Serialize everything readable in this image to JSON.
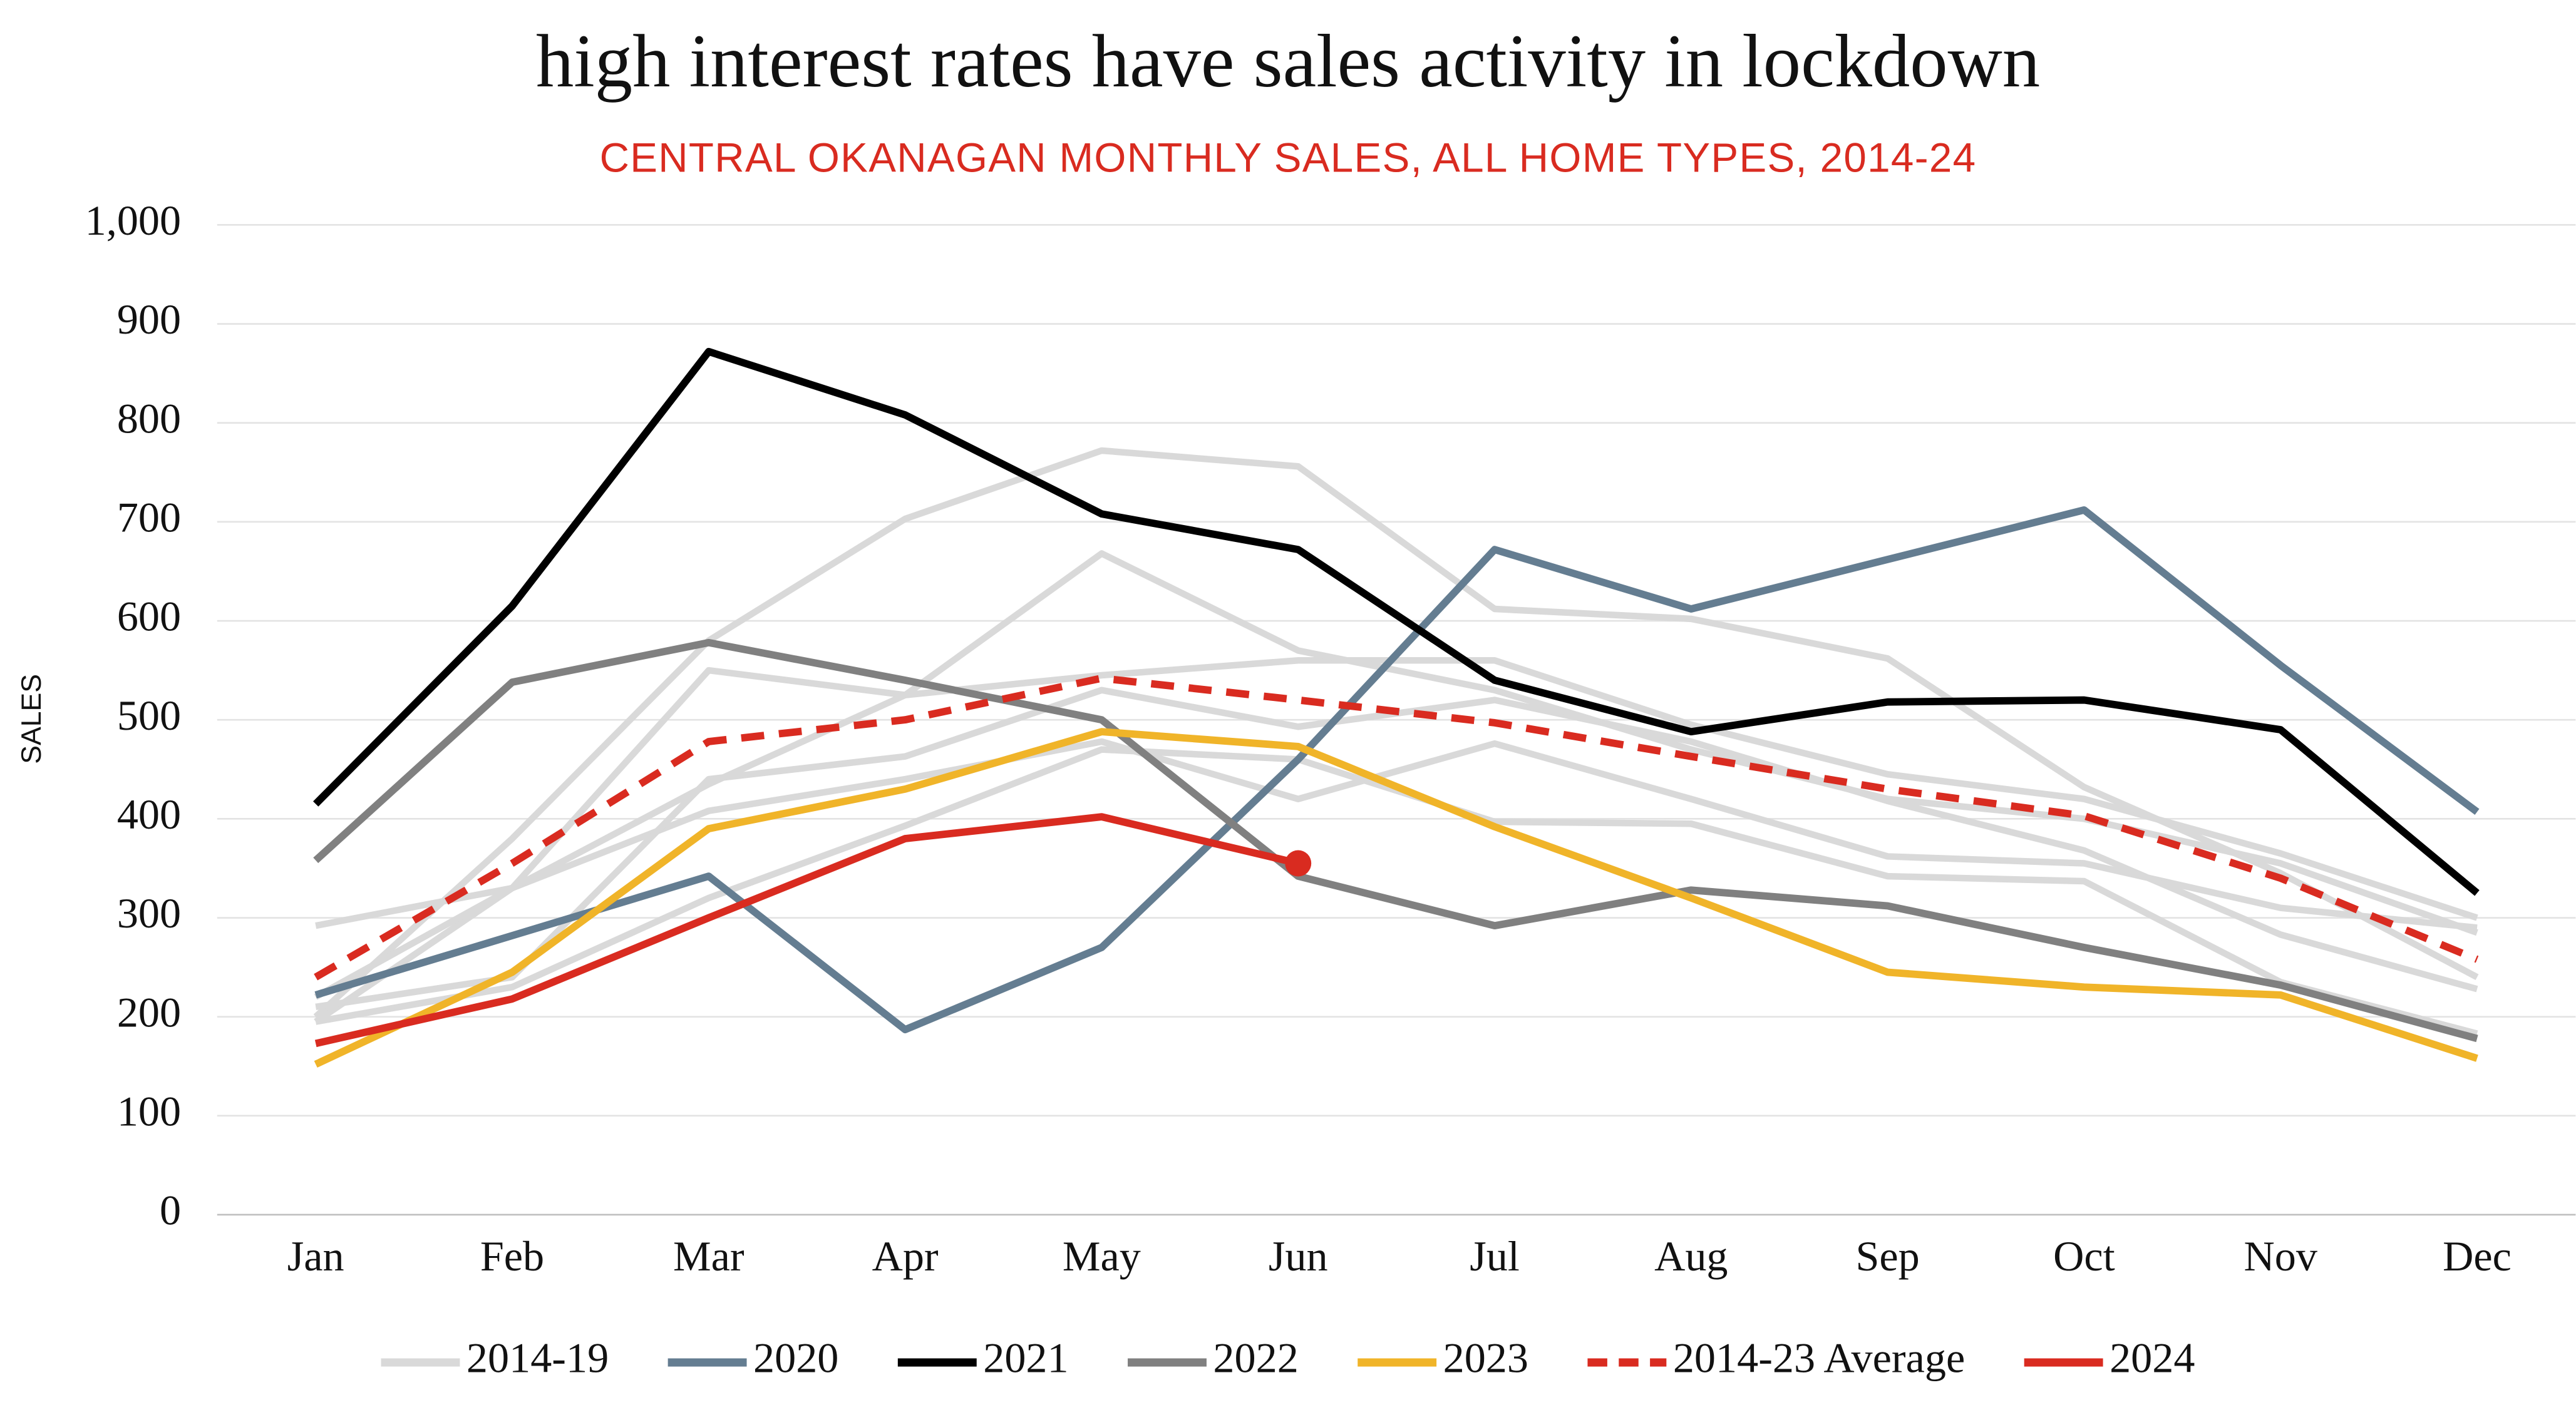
{
  "chart_data": {
    "type": "line",
    "title": "high interest rates have sales activity in lockdown",
    "subtitle": "CENTRAL OKANAGAN MONTHLY SALES, ALL HOME TYPES, 2014-24",
    "y_label": "SALES",
    "categories": [
      "Jan",
      "Feb",
      "Mar",
      "Apr",
      "May",
      "Jun",
      "Jul",
      "Aug",
      "Sep",
      "Oct",
      "Nov",
      "Dec"
    ],
    "ylim": [
      0,
      1000
    ],
    "yticks": [
      0,
      100,
      200,
      300,
      400,
      500,
      600,
      700,
      800,
      900,
      {
        "value": 1000,
        "label": "1,000"
      }
    ],
    "grid": true,
    "legend": "bottom",
    "series": [
      {
        "name": "2014-19",
        "color": "#d9d9d9",
        "lines": [
          [
            292,
            330,
            408,
            440,
            478,
            420,
            476,
            420,
            362,
            355,
            310,
            290
          ],
          [
            195,
            330,
            550,
            525,
            545,
            560,
            560,
            495,
            445,
            420,
            365,
            300
          ],
          [
            200,
            380,
            580,
            703,
            772,
            756,
            612,
            602,
            562,
            432,
            345,
            240
          ],
          [
            210,
            240,
            440,
            463,
            530,
            493,
            520,
            478,
            418,
            368,
            283,
            228
          ],
          [
            195,
            230,
            320,
            393,
            470,
            460,
            397,
            395,
            342,
            337,
            235,
            183
          ],
          [
            220,
            330,
            435,
            525,
            668,
            570,
            530,
            470,
            420,
            400,
            355,
            285
          ]
        ]
      },
      {
        "name": "2020",
        "color": "#647d91",
        "values": [
          222,
          282,
          342,
          187,
          270,
          460,
          672,
          612,
          662,
          712,
          555,
          407
        ]
      },
      {
        "name": "2021",
        "color": "#000000",
        "values": [
          415,
          615,
          872,
          808,
          708,
          672,
          540,
          488,
          518,
          520,
          490,
          325
        ]
      },
      {
        "name": "2022",
        "color": "#808080",
        "values": [
          358,
          538,
          578,
          540,
          500,
          342,
          292,
          328,
          312,
          270,
          232,
          178
        ]
      },
      {
        "name": "2023",
        "color": "#f0b429",
        "values": [
          152,
          245,
          390,
          430,
          488,
          473,
          392,
          320,
          245,
          230,
          222,
          158
        ]
      },
      {
        "name": "2014-23 Average",
        "color": "#d92b20",
        "dashed": true,
        "values": [
          240,
          355,
          478,
          500,
          542,
          520,
          497,
          463,
          430,
          403,
          340,
          258
        ]
      },
      {
        "name": "2024",
        "color": "#d92b20",
        "end_marker": true,
        "values": [
          173,
          218,
          300,
          380,
          402,
          355,
          null,
          null,
          null,
          null,
          null,
          null
        ]
      }
    ]
  }
}
